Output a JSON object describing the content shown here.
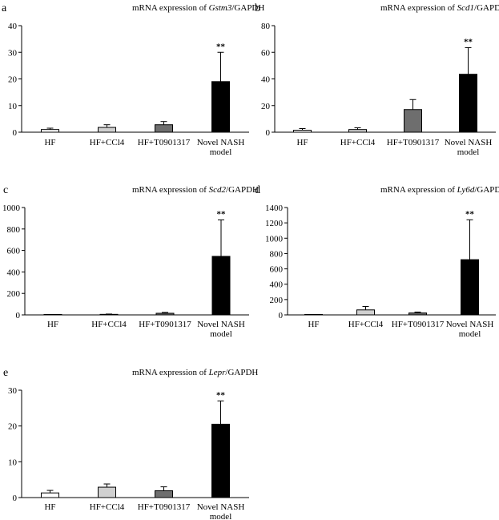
{
  "chart_data": [
    {
      "panel": "a",
      "type": "bar",
      "title_prefix": "mRNA expression of ",
      "title_gene": "Gstm3",
      "title_suffix": "/GAPDH",
      "categories": [
        [
          "HF"
        ],
        [
          "HF+CCl4"
        ],
        [
          "HF+T0901317"
        ],
        [
          "Novel NASH",
          "model"
        ]
      ],
      "values": [
        1.0,
        1.8,
        2.8,
        19.0
      ],
      "errors": [
        0.5,
        1.0,
        1.2,
        11.0
      ],
      "fills": [
        "#ffffff",
        "#d0d0d0",
        "#6e6e6e",
        "#000000"
      ],
      "ylim": [
        0,
        40
      ],
      "yticks": [
        0,
        10,
        20,
        30,
        40
      ],
      "annotations": [
        {
          "category_index": 3,
          "text": "**"
        }
      ],
      "xlabel": "",
      "ylabel": "",
      "grid": false
    },
    {
      "panel": "b",
      "type": "bar",
      "title_prefix": "mRNA expression of ",
      "title_gene": "Scd1",
      "title_suffix": "/GAPDH",
      "categories": [
        [
          "HF"
        ],
        [
          "HF+CCl4"
        ],
        [
          "HF+T0901317"
        ],
        [
          "Novel NASH",
          "model"
        ]
      ],
      "values": [
        1.5,
        2.0,
        17.0,
        43.5
      ],
      "errors": [
        1.2,
        1.3,
        7.5,
        20.0
      ],
      "fills": [
        "#ffffff",
        "#d0d0d0",
        "#6e6e6e",
        "#000000"
      ],
      "ylim": [
        0,
        80
      ],
      "yticks": [
        0,
        20,
        40,
        60,
        80
      ],
      "annotations": [
        {
          "category_index": 3,
          "text": "**"
        }
      ],
      "xlabel": "",
      "ylabel": "",
      "grid": false
    },
    {
      "panel": "c",
      "type": "bar",
      "title_prefix": "mRNA expression of ",
      "title_gene": "Scd2",
      "title_suffix": "/GAPDH",
      "categories": [
        [
          "HF"
        ],
        [
          "HF+CCl4"
        ],
        [
          "HF+T0901317"
        ],
        [
          "Novel NASH",
          "model"
        ]
      ],
      "values": [
        1,
        5,
        15,
        545
      ],
      "errors": [
        1,
        3,
        8,
        340
      ],
      "fills": [
        "#ffffff",
        "#d0d0d0",
        "#6e6e6e",
        "#000000"
      ],
      "ylim": [
        0,
        1000
      ],
      "yticks": [
        0,
        200,
        400,
        600,
        800,
        1000
      ],
      "annotations": [
        {
          "category_index": 3,
          "text": "**"
        }
      ],
      "xlabel": "",
      "ylabel": "",
      "grid": false
    },
    {
      "panel": "d",
      "type": "bar",
      "title_prefix": "mRNA expression of ",
      "title_gene": "Ly6d",
      "title_suffix": "/GAPDH",
      "categories": [
        [
          "HF"
        ],
        [
          "HF+CCl4"
        ],
        [
          "HF+T0901317"
        ],
        [
          "Novel NASH",
          "model"
        ]
      ],
      "values": [
        1,
        65,
        25,
        720
      ],
      "errors": [
        1,
        45,
        12,
        520
      ],
      "fills": [
        "#ffffff",
        "#d0d0d0",
        "#6e6e6e",
        "#000000"
      ],
      "ylim": [
        0,
        1400
      ],
      "yticks": [
        0,
        200,
        400,
        600,
        800,
        1000,
        1200,
        1400
      ],
      "annotations": [
        {
          "category_index": 3,
          "text": "**"
        }
      ],
      "xlabel": "",
      "ylabel": "",
      "grid": false
    },
    {
      "panel": "e",
      "type": "bar",
      "title_prefix": "mRNA expression of ",
      "title_gene": "Lepr",
      "title_suffix": "/GAPDH",
      "categories": [
        [
          "HF"
        ],
        [
          "HF+CCl4"
        ],
        [
          "HF+T0901317"
        ],
        [
          "Novel NASH",
          "model"
        ]
      ],
      "values": [
        1.3,
        2.9,
        1.9,
        20.5
      ],
      "errors": [
        0.7,
        0.9,
        1.1,
        6.5
      ],
      "fills": [
        "#ffffff",
        "#d0d0d0",
        "#6e6e6e",
        "#000000"
      ],
      "ylim": [
        0,
        30
      ],
      "yticks": [
        0,
        10,
        20,
        30
      ],
      "annotations": [
        {
          "category_index": 3,
          "text": "**"
        }
      ],
      "xlabel": "",
      "ylabel": "",
      "grid": false
    }
  ]
}
